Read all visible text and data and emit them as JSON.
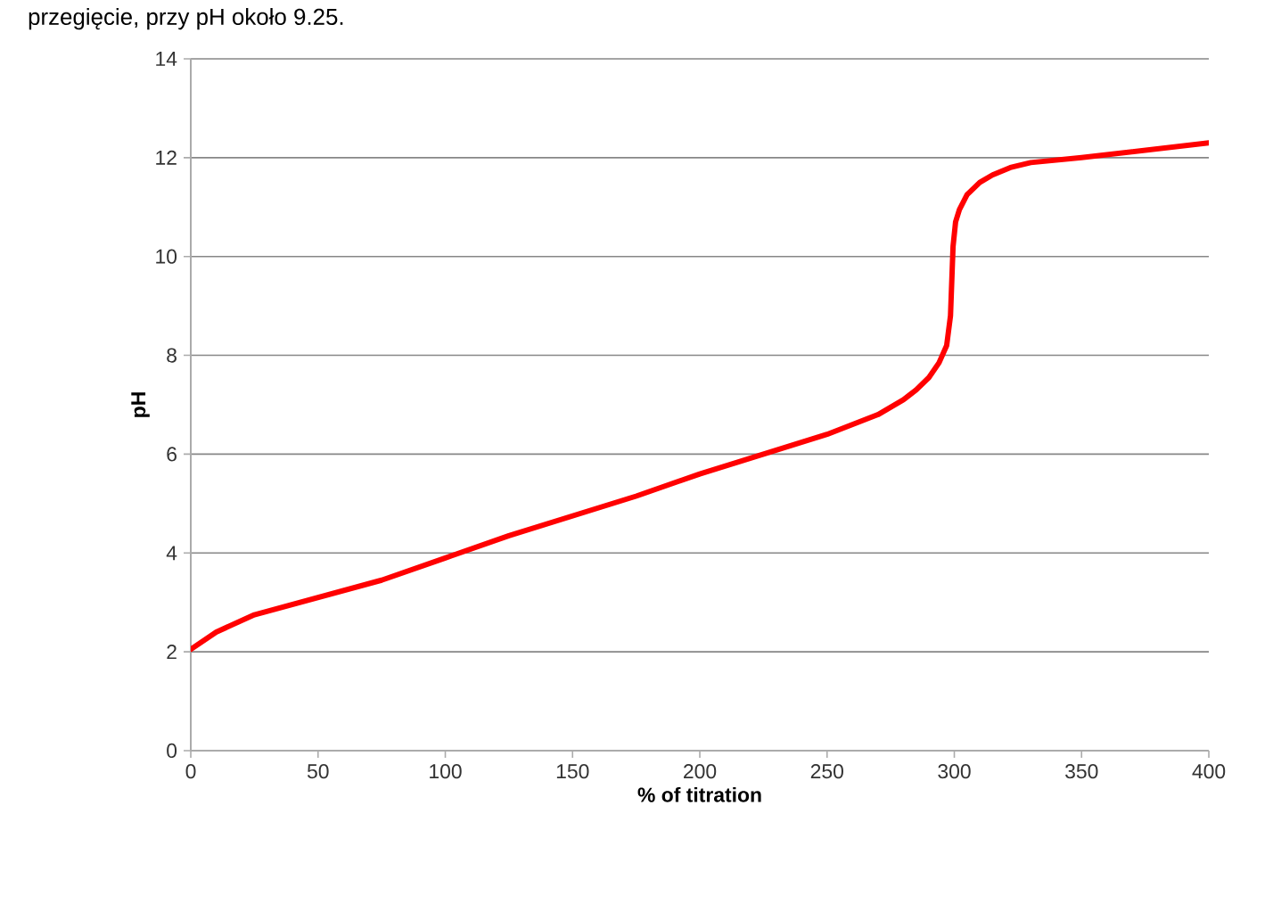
{
  "chart_data": {
    "type": "line",
    "xlabel": "% of titration",
    "ylabel": "pH",
    "annotations": [
      "przegięcie, przy pH około 9.25."
    ],
    "x": [
      0,
      10,
      25,
      50,
      75,
      100,
      125,
      150,
      175,
      200,
      225,
      250,
      270,
      280,
      285,
      290,
      294,
      297,
      298.5,
      299,
      299.5,
      300.5,
      302,
      305,
      310,
      315,
      322,
      330,
      350,
      375,
      400
    ],
    "series": [
      {
        "color": "#ff0000",
        "values": [
          2.05,
          2.4,
          2.75,
          3.1,
          3.45,
          3.9,
          4.35,
          4.75,
          5.15,
          5.6,
          6.0,
          6.4,
          6.8,
          7.1,
          7.3,
          7.55,
          7.85,
          8.2,
          8.8,
          9.5,
          10.2,
          10.7,
          10.95,
          11.25,
          11.5,
          11.65,
          11.8,
          11.9,
          12.0,
          12.15,
          12.3
        ]
      }
    ],
    "xlim": [
      0,
      400
    ],
    "ylim": [
      0,
      14
    ],
    "xticks": [
      0,
      50,
      100,
      150,
      200,
      250,
      300,
      350,
      400
    ],
    "yticks": [
      0,
      2,
      4,
      6,
      8,
      10,
      12,
      14
    ],
    "grid": "y",
    "marker": "none",
    "line_style": "solid"
  }
}
